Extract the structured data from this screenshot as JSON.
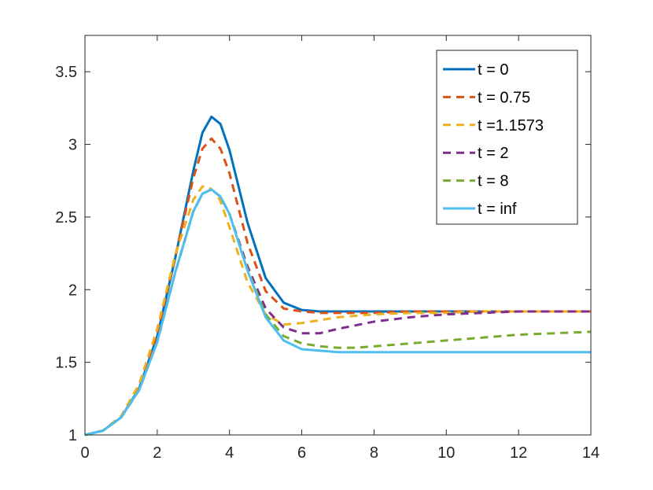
{
  "chart_data": {
    "type": "line",
    "title": "",
    "xlabel": "",
    "ylabel": "",
    "xlim": [
      0,
      14
    ],
    "ylim": [
      1,
      3.75
    ],
    "xticks": [
      0,
      2,
      4,
      6,
      8,
      10,
      12,
      14
    ],
    "xtick_labels": [
      "0",
      "2",
      "4",
      "6",
      "8",
      "10",
      "12",
      "14"
    ],
    "yticks": [
      1,
      1.5,
      2,
      2.5,
      3,
      3.5
    ],
    "ytick_labels": [
      "1",
      "1.5",
      "2",
      "2.5",
      "3",
      "3.5"
    ],
    "grid": false,
    "legend_position": "top-right",
    "series": [
      {
        "name": "t = 0",
        "color": "#0072BD",
        "style": "solid",
        "x": [
          0,
          0.5,
          1,
          1.5,
          2,
          2.5,
          3,
          3.25,
          3.5,
          3.75,
          4,
          4.5,
          5,
          5.5,
          6,
          6.5,
          7,
          8,
          9,
          10,
          11,
          12,
          13,
          14
        ],
        "y": [
          1,
          1.03,
          1.12,
          1.32,
          1.68,
          2.22,
          2.82,
          3.08,
          3.19,
          3.14,
          2.96,
          2.46,
          2.08,
          1.91,
          1.86,
          1.85,
          1.85,
          1.85,
          1.85,
          1.85,
          1.85,
          1.85,
          1.85,
          1.85
        ]
      },
      {
        "name": "t = 0.75",
        "color": "#D95319",
        "style": "dashed",
        "x": [
          0,
          0.5,
          1,
          1.5,
          2,
          2.5,
          3,
          3.25,
          3.5,
          3.75,
          4,
          4.5,
          5,
          5.5,
          6,
          6.5,
          7,
          8,
          9,
          10,
          11,
          12,
          13,
          14
        ],
        "y": [
          1,
          1.03,
          1.12,
          1.33,
          1.7,
          2.23,
          2.77,
          2.97,
          3.04,
          2.97,
          2.8,
          2.32,
          1.99,
          1.87,
          1.85,
          1.84,
          1.84,
          1.84,
          1.85,
          1.85,
          1.85,
          1.85,
          1.85,
          1.85
        ]
      },
      {
        "name": "t =1.1573",
        "color": "#EDB120",
        "style": "dashed",
        "x": [
          0,
          0.5,
          1,
          1.5,
          2,
          2.5,
          3,
          3.25,
          3.4,
          3.6,
          3.75,
          4,
          4.5,
          5,
          5.5,
          6,
          6.5,
          7,
          8,
          9,
          10,
          11,
          12,
          13,
          14
        ],
        "y": [
          1,
          1.03,
          1.13,
          1.35,
          1.73,
          2.24,
          2.62,
          2.71,
          2.71,
          2.67,
          2.61,
          2.43,
          2.05,
          1.83,
          1.76,
          1.77,
          1.79,
          1.81,
          1.83,
          1.84,
          1.84,
          1.85,
          1.85,
          1.85,
          1.85
        ]
      },
      {
        "name": "t = 2",
        "color": "#7E2F8E",
        "style": "dashed",
        "x": [
          0,
          0.5,
          1,
          1.5,
          2,
          2.5,
          3,
          3.25,
          3.5,
          3.75,
          4,
          4.5,
          5,
          5.5,
          6,
          6.5,
          7,
          8,
          9,
          10,
          11,
          12,
          13,
          14
        ],
        "y": [
          1,
          1.03,
          1.12,
          1.31,
          1.64,
          2.12,
          2.54,
          2.66,
          2.69,
          2.64,
          2.52,
          2.16,
          1.87,
          1.74,
          1.7,
          1.7,
          1.73,
          1.78,
          1.81,
          1.83,
          1.84,
          1.85,
          1.85,
          1.85
        ]
      },
      {
        "name": "t = 8",
        "color": "#77AC30",
        "style": "dashed",
        "x": [
          0,
          0.5,
          1,
          1.5,
          2,
          2.5,
          3,
          3.25,
          3.5,
          3.75,
          4,
          4.5,
          5,
          5.5,
          6,
          6.5,
          7,
          7.5,
          8,
          9,
          10,
          11,
          12,
          13,
          14
        ],
        "y": [
          1,
          1.03,
          1.12,
          1.31,
          1.64,
          2.12,
          2.54,
          2.66,
          2.69,
          2.64,
          2.52,
          2.14,
          1.83,
          1.68,
          1.63,
          1.61,
          1.6,
          1.6,
          1.61,
          1.63,
          1.65,
          1.67,
          1.69,
          1.7,
          1.71
        ]
      },
      {
        "name": "t = inf",
        "color": "#4DBEEE",
        "style": "solid",
        "x": [
          0,
          0.5,
          1,
          1.5,
          2,
          2.5,
          3,
          3.25,
          3.5,
          3.75,
          4,
          4.5,
          5,
          5.5,
          6,
          6.5,
          7,
          8,
          9,
          10,
          11,
          12,
          13,
          14
        ],
        "y": [
          1,
          1.03,
          1.12,
          1.31,
          1.64,
          2.12,
          2.54,
          2.66,
          2.69,
          2.64,
          2.52,
          2.13,
          1.81,
          1.65,
          1.59,
          1.58,
          1.57,
          1.57,
          1.57,
          1.57,
          1.57,
          1.57,
          1.57,
          1.57
        ]
      }
    ]
  }
}
